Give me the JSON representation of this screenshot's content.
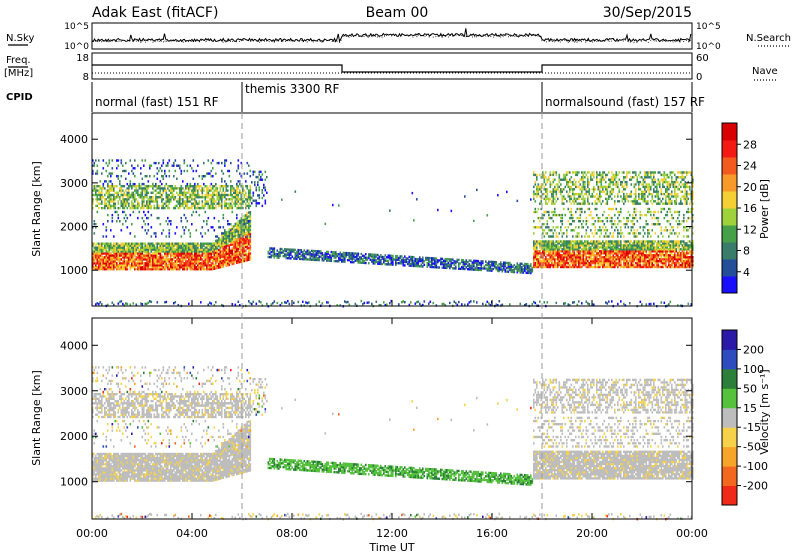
{
  "header": {
    "station": "Adak East (fitACF)",
    "beam": "Beam 00",
    "date": "30/Sep/2015"
  },
  "top_panel": {
    "left_label": "N.Sky",
    "right_label": "N.Search",
    "left_ticks": [
      "10^5",
      "10^0"
    ],
    "right_ticks": [
      "10^5",
      "10^0"
    ]
  },
  "freq_panel": {
    "left_label_1": "Freq.",
    "left_label_2": "[MHz]",
    "right_label": "Nave",
    "left_ticks": [
      "18",
      "8"
    ],
    "right_ticks": [
      "60",
      "0"
    ]
  },
  "cpid_panel": {
    "label": "CPID",
    "segments": [
      {
        "text": "normal (fast) 151 RF",
        "start_hour": 0
      },
      {
        "text": "themis 3300 RF",
        "start_hour": 6
      },
      {
        "text": "normalsound (fast) 157 RF",
        "start_hour": 18
      }
    ]
  },
  "chart_data": [
    {
      "type": "heatmap",
      "parameter": "Power",
      "ylabel": "Slant Range [km]",
      "ylim": [
        180,
        4600
      ],
      "yticks": [
        "1000",
        "2000",
        "3000",
        "4000"
      ],
      "xlim": [
        0,
        24
      ],
      "colorbar_label": "Power [dB]",
      "colorbar_ticks": [
        "4",
        "8",
        "12",
        "16",
        "20",
        "24",
        "28"
      ],
      "colors": [
        "#1a10ff",
        "#244d9a",
        "#3a7c6a",
        "#46a048",
        "#9fd23a",
        "#f4d034",
        "#f79a2a",
        "#f25a1e",
        "#f41a14",
        "#d90000"
      ],
      "echo_regions": [
        {
          "name": "ionospheric-main",
          "x_start": 0,
          "x_end": 6,
          "range_start": 1000,
          "range_end": 1600,
          "level": "high"
        },
        {
          "name": "ionospheric-upper",
          "x_start": 0,
          "x_end": 6,
          "range_start": 2500,
          "range_end": 3000,
          "level": "mid"
        },
        {
          "name": "themis-band",
          "x_start": 7,
          "x_end": 17.5,
          "range_start": 1000,
          "range_end": 1700,
          "level": "low"
        },
        {
          "name": "evening-main",
          "x_start": 18,
          "x_end": 24,
          "range_start": 1100,
          "range_end": 1700,
          "level": "high"
        },
        {
          "name": "evening-upper",
          "x_start": 18,
          "x_end": 24,
          "range_start": 2500,
          "range_end": 3300,
          "level": "mid"
        }
      ]
    },
    {
      "type": "heatmap",
      "parameter": "Velocity",
      "ylabel": "Slant Range [km]",
      "ylim": [
        180,
        4600
      ],
      "yticks": [
        "1000",
        "2000",
        "3000",
        "4000"
      ],
      "xlim": [
        0,
        24
      ],
      "xticks": [
        "00:00",
        "04:00",
        "08:00",
        "12:00",
        "16:00",
        "20:00",
        "00:00"
      ],
      "xlabel": "Time UT",
      "colorbar_label": "Velocity [m s⁻¹]",
      "colorbar_ticks": [
        "200",
        "100",
        "50",
        "15",
        "-15",
        "-50",
        "-100",
        "-200"
      ],
      "colors": [
        "#2b1aa8",
        "#2c4cc0",
        "#2b7f3a",
        "#55c13d",
        "#bdbdbd",
        "#f6d24a",
        "#f7a52a",
        "#f2681e",
        "#f02a18"
      ]
    }
  ]
}
